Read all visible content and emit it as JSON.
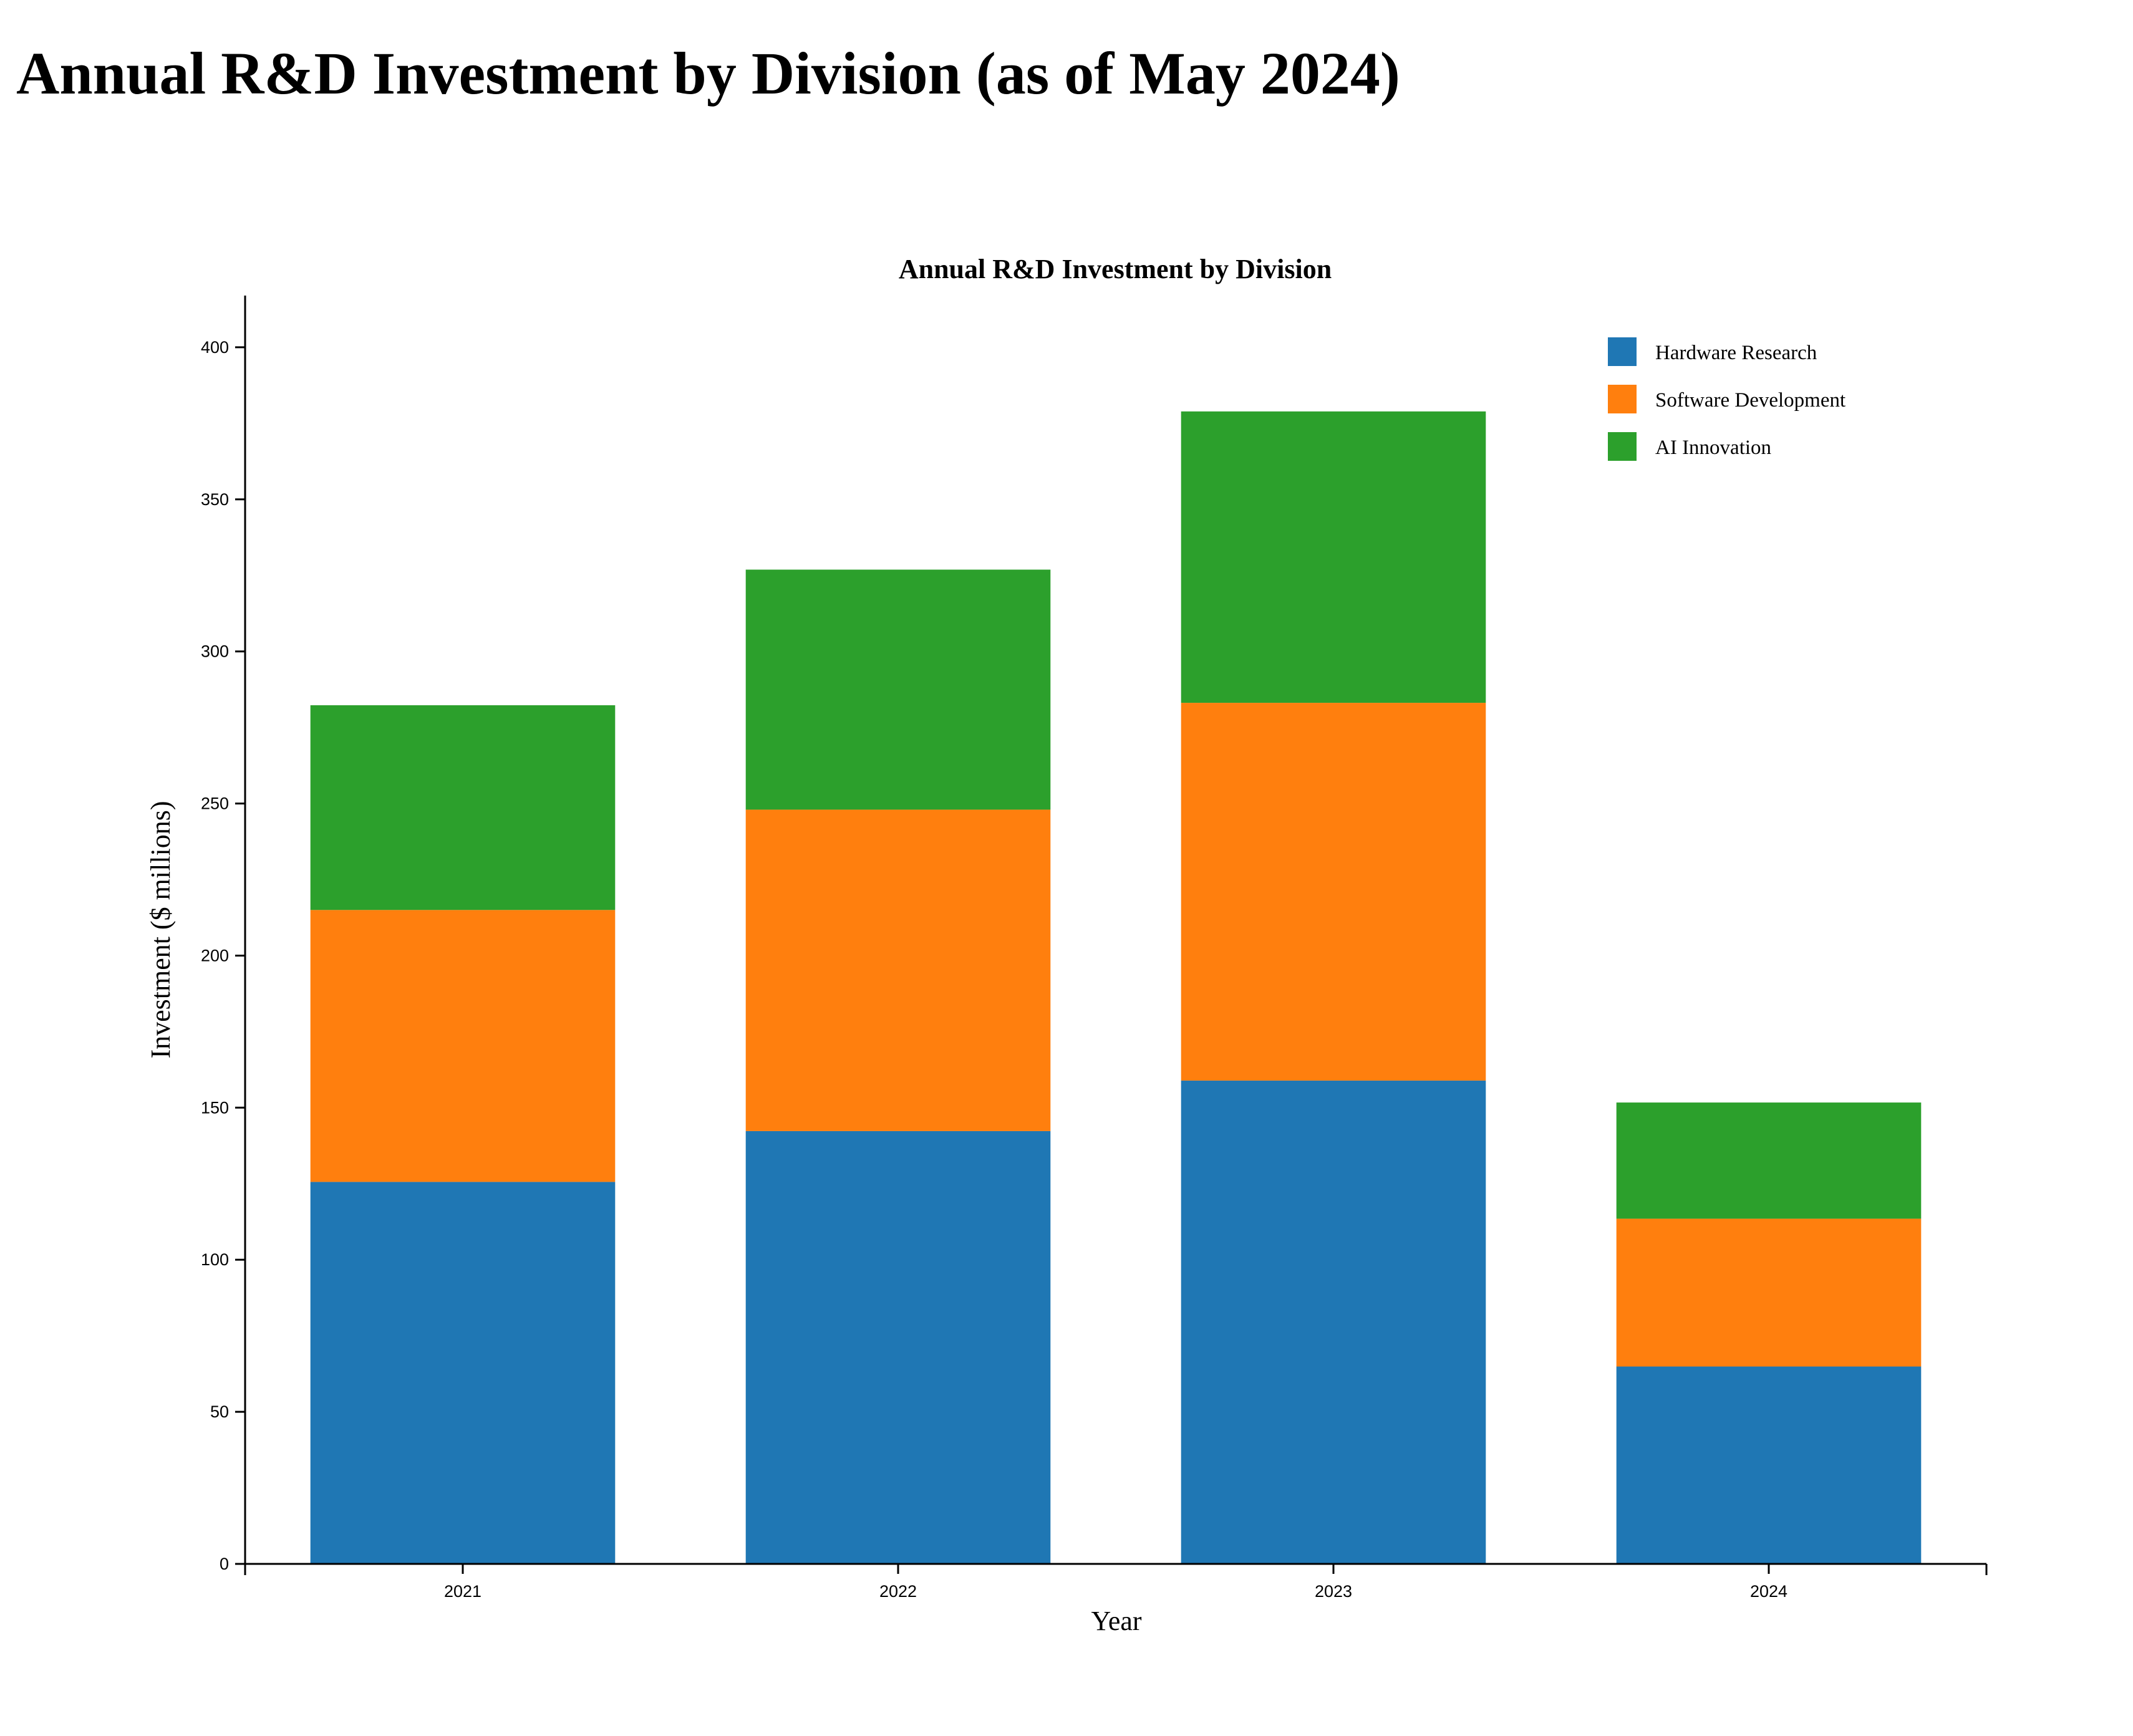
{
  "page": {
    "heading": "Annual R&D Investment by Division (as of May 2024)"
  },
  "chart_data": {
    "type": "bar",
    "stacked": true,
    "title": "Annual R&D Investment by Division",
    "xlabel": "Year",
    "ylabel": "Investment ($ millions)",
    "categories": [
      "2021",
      "2022",
      "2023",
      "2024"
    ],
    "series": [
      {
        "name": "Hardware Research",
        "color": "#1f77b4",
        "values": [
          125.6,
          142.3,
          158.9,
          64.9
        ]
      },
      {
        "name": "Software Development",
        "color": "#ff7f0e",
        "values": [
          89.4,
          105.7,
          124.2,
          48.6
        ]
      },
      {
        "name": "AI Innovation",
        "color": "#2ca02c",
        "values": [
          67.3,
          78.9,
          95.8,
          38.2
        ]
      }
    ],
    "ylim": [
      0,
      417
    ],
    "yticks": [
      0,
      50,
      100,
      150,
      200,
      250,
      300,
      350,
      400
    ],
    "grid": false,
    "legend_position": "top-right"
  }
}
